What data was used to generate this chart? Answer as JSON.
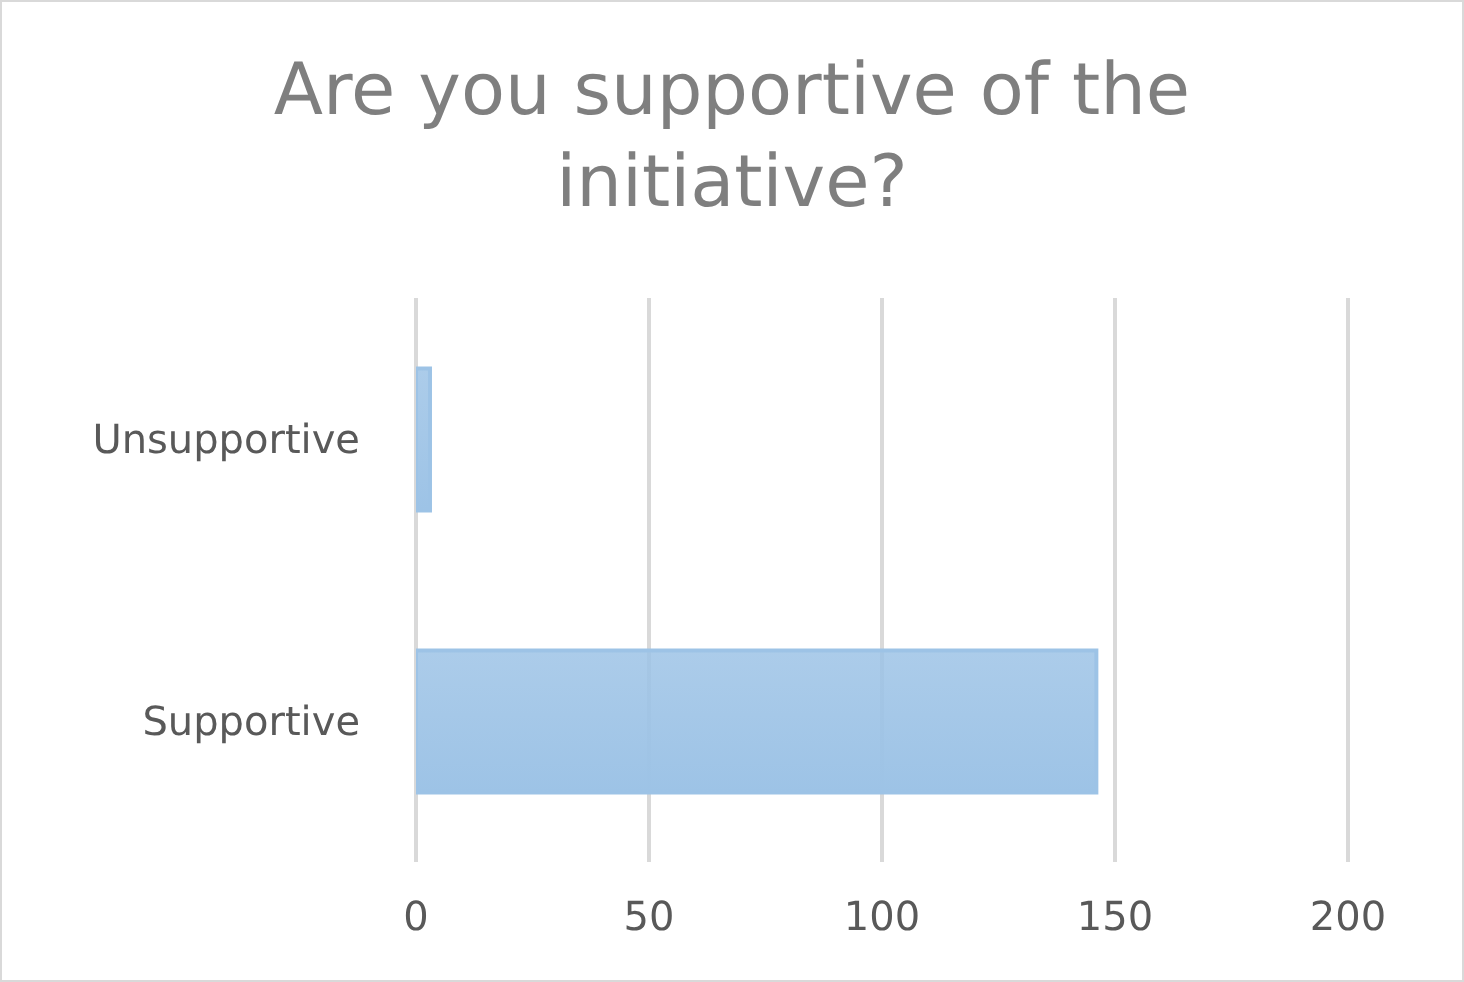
{
  "chart_data": {
    "type": "bar",
    "orientation": "horizontal",
    "title": "Are you supportive of the initiative?",
    "categories": [
      "Unsupportive",
      "Supportive"
    ],
    "values": [
      3,
      146
    ],
    "color": "#9dc3e6",
    "xlim": [
      0,
      200
    ],
    "xticks": [
      0,
      50,
      100,
      150,
      200
    ],
    "grid": "x",
    "legend": false
  }
}
